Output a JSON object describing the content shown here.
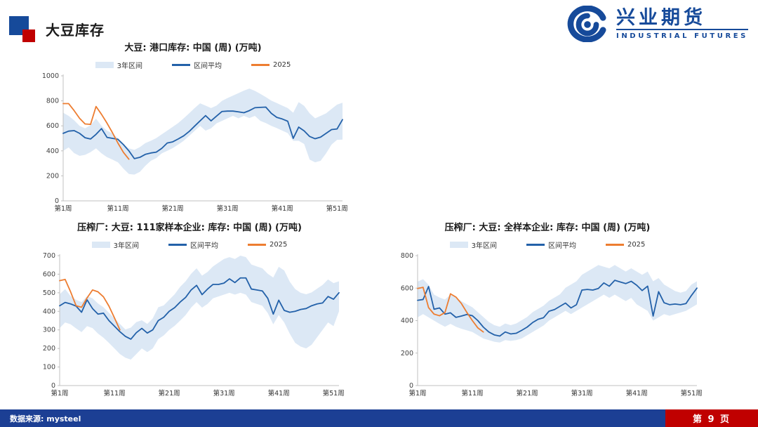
{
  "header": {
    "slide_title": "大豆库存",
    "brand": {
      "name_cn": "兴业期货",
      "name_en": "INDUSTRIAL FUTURES"
    }
  },
  "footer": {
    "source_label": "数据来源: mysteel",
    "page_label": "第 9 页"
  },
  "colors": {
    "brand_blue": "#164a9a",
    "accent_red": "#c00000",
    "footer_bg": "#1c3f94",
    "band": "#dce8f5",
    "avg_line": "#2361a9",
    "cur_line": "#ed7d31",
    "axis": "#c0c0c0",
    "tick_text": "#404040"
  },
  "chart_data": [
    {
      "type": "line",
      "title": "大豆: 港口库存: 中国 (周)  (万吨)",
      "xlabel": "",
      "ylabel": "",
      "weeks": 52,
      "x_tick_weeks": [
        1,
        11,
        21,
        31,
        41,
        51
      ],
      "x_tick_labels": [
        "第1周",
        "第11周",
        "第21周",
        "第31周",
        "第41周",
        "第51周"
      ],
      "ylim": [
        0,
        1000
      ],
      "yticks": [
        0,
        200,
        400,
        600,
        800,
        1000
      ],
      "grid": false,
      "legend_position": "top",
      "series": [
        {
          "name": "3年区间",
          "type": "band",
          "upper": [
            705,
            680,
            645,
            600,
            580,
            605,
            658,
            600,
            562,
            540,
            502,
            452,
            420,
            408,
            430,
            462,
            480,
            502,
            532,
            562,
            592,
            622,
            660,
            700,
            742,
            780,
            762,
            742,
            762,
            800,
            822,
            842,
            862,
            882,
            898,
            880,
            856,
            830,
            802,
            782,
            762,
            742,
            705,
            790,
            760,
            700,
            660,
            680,
            700,
            735,
            770,
            785
          ],
          "lower": [
            400,
            428,
            382,
            360,
            368,
            390,
            420,
            380,
            350,
            330,
            308,
            258,
            215,
            210,
            232,
            280,
            320,
            342,
            380,
            400,
            422,
            450,
            480,
            520,
            560,
            600,
            562,
            580,
            620,
            640,
            660,
            680,
            660,
            680,
            662,
            680,
            640,
            622,
            600,
            582,
            562,
            542,
            480,
            480,
            455,
            330,
            308,
            320,
            380,
            450,
            488,
            490
          ]
        },
        {
          "name": "区间平均",
          "type": "line",
          "values": [
            540,
            558,
            562,
            540,
            505,
            495,
            532,
            578,
            508,
            500,
            492,
            450,
            400,
            338,
            348,
            372,
            383,
            390,
            420,
            463,
            472,
            495,
            520,
            555,
            598,
            640,
            682,
            640,
            678,
            715,
            718,
            718,
            712,
            705,
            722,
            745,
            748,
            750,
            700,
            668,
            655,
            637,
            500,
            590,
            560,
            515,
            497,
            510,
            540,
            570,
            575,
            650
          ]
        },
        {
          "name": "2025",
          "type": "line",
          "values": [
            778,
            778,
            722,
            660,
            615,
            612,
            755,
            692,
            622,
            545,
            462,
            388,
            333
          ]
        }
      ]
    },
    {
      "type": "line",
      "title": "压榨厂: 大豆: 111家样本企业: 库存: 中国 (周)  (万吨)",
      "xlabel": "",
      "ylabel": "",
      "weeks": 52,
      "x_tick_weeks": [
        1,
        11,
        21,
        31,
        41,
        51
      ],
      "x_tick_labels": [
        "第1周",
        "第11周",
        "第21周",
        "第31周",
        "第41周",
        "第51周"
      ],
      "ylim": [
        0,
        700
      ],
      "yticks": [
        0,
        100,
        200,
        300,
        400,
        500,
        600,
        700
      ],
      "grid": false,
      "legend_position": "top",
      "series": [
        {
          "name": "3年区间",
          "type": "band",
          "upper": [
            492,
            520,
            482,
            462,
            450,
            482,
            470,
            442,
            422,
            392,
            362,
            332,
            302,
            312,
            342,
            352,
            332,
            362,
            422,
            432,
            462,
            492,
            532,
            562,
            602,
            632,
            592,
            612,
            642,
            662,
            682,
            692,
            682,
            700,
            692,
            652,
            642,
            632,
            602,
            582,
            640,
            620,
            560,
            520,
            500,
            492,
            502,
            522,
            542,
            572,
            552,
            562
          ],
          "lower": [
            310,
            340,
            330,
            308,
            288,
            320,
            310,
            280,
            258,
            230,
            200,
            170,
            150,
            140,
            170,
            200,
            180,
            200,
            250,
            270,
            300,
            322,
            350,
            380,
            420,
            450,
            420,
            440,
            470,
            480,
            490,
            500,
            490,
            500,
            490,
            450,
            440,
            430,
            390,
            330,
            380,
            340,
            280,
            230,
            210,
            200,
            220,
            260,
            300,
            340,
            320,
            400
          ]
        },
        {
          "name": "区间平均",
          "type": "line",
          "values": [
            430,
            448,
            440,
            428,
            395,
            462,
            415,
            385,
            390,
            350,
            320,
            290,
            265,
            250,
            285,
            308,
            283,
            300,
            350,
            368,
            400,
            420,
            450,
            475,
            515,
            540,
            490,
            520,
            545,
            545,
            552,
            575,
            555,
            580,
            580,
            520,
            515,
            510,
            470,
            385,
            460,
            405,
            395,
            400,
            410,
            415,
            430,
            440,
            445,
            480,
            465,
            500
          ]
        },
        {
          "name": "2025",
          "type": "line",
          "values": [
            565,
            572,
            505,
            430,
            422,
            472,
            515,
            505,
            478,
            428,
            365,
            300
          ]
        }
      ]
    },
    {
      "type": "line",
      "title": "压榨厂: 大豆: 全样本企业: 库存: 中国 (周)  (万吨)",
      "xlabel": "",
      "ylabel": "",
      "weeks": 52,
      "x_tick_weeks": [
        1,
        11,
        21,
        31,
        41,
        51
      ],
      "x_tick_labels": [
        "第1周",
        "第11周",
        "第21周",
        "第31周",
        "第41周",
        "第51周"
      ],
      "ylim": [
        0,
        800
      ],
      "yticks": [
        0,
        200,
        400,
        600,
        800
      ],
      "grid": false,
      "legend_position": "top",
      "series": [
        {
          "name": "3年区间",
          "type": "band",
          "upper": [
            640,
            655,
            620,
            560,
            542,
            530,
            560,
            542,
            520,
            500,
            482,
            452,
            422,
            392,
            372,
            362,
            382,
            372,
            382,
            402,
            422,
            452,
            472,
            492,
            522,
            542,
            562,
            602,
            622,
            642,
            682,
            702,
            722,
            742,
            732,
            722,
            742,
            722,
            702,
            722,
            702,
            682,
            702,
            642,
            662,
            622,
            602,
            582,
            572,
            582,
            622,
            642
          ],
          "lower": [
            420,
            440,
            420,
            400,
            380,
            362,
            380,
            362,
            350,
            340,
            330,
            310,
            290,
            280,
            270,
            265,
            280,
            275,
            280,
            290,
            310,
            330,
            350,
            370,
            400,
            420,
            440,
            460,
            440,
            460,
            480,
            500,
            520,
            540,
            560,
            540,
            560,
            540,
            520,
            540,
            500,
            480,
            460,
            400,
            420,
            440,
            430,
            440,
            450,
            460,
            480,
            500
          ]
        },
        {
          "name": "区间平均",
          "type": "line",
          "values": [
            525,
            530,
            610,
            470,
            478,
            440,
            448,
            420,
            428,
            438,
            430,
            400,
            360,
            330,
            312,
            305,
            330,
            318,
            322,
            340,
            360,
            388,
            408,
            418,
            458,
            468,
            488,
            508,
            478,
            498,
            588,
            592,
            588,
            598,
            632,
            612,
            648,
            638,
            628,
            642,
            618,
            585,
            612,
            428,
            578,
            510,
            498,
            502,
            498,
            505,
            555,
            600
          ]
        },
        {
          "name": "2025",
          "type": "line",
          "values": [
            598,
            605,
            480,
            440,
            430,
            450,
            565,
            545,
            505,
            450,
            400,
            355,
            330
          ]
        }
      ]
    }
  ]
}
